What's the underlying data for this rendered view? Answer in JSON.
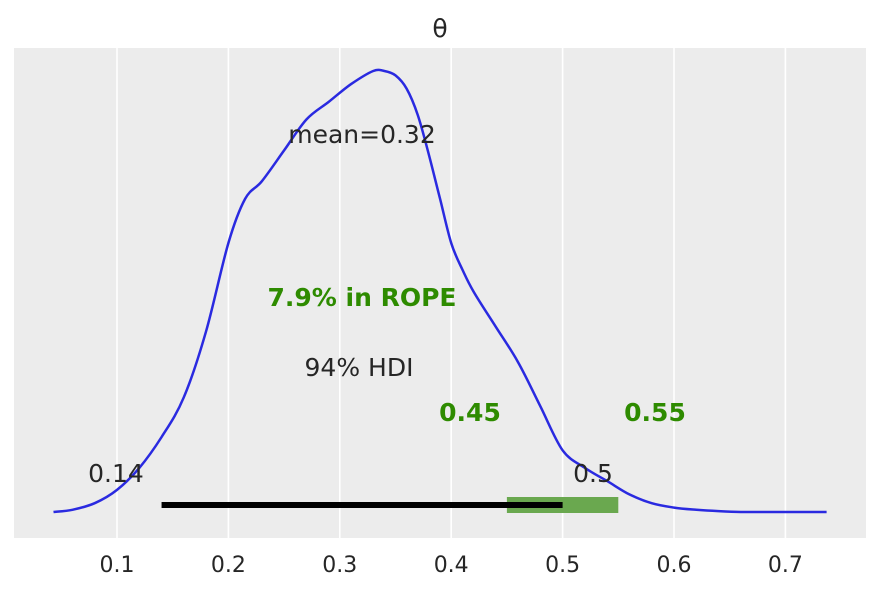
{
  "chart_data": {
    "type": "area",
    "title": "θ",
    "xlabel": "",
    "ylabel": "",
    "xlim": [
      0.01,
      0.77
    ],
    "ylim": [
      0,
      1.09
    ],
    "x_ticks": [
      0.1,
      0.2,
      0.3,
      0.4,
      0.5,
      0.6,
      0.7
    ],
    "x_tick_labels": [
      "0.1",
      "0.2",
      "0.3",
      "0.4",
      "0.5",
      "0.6",
      "0.7"
    ],
    "grid": true,
    "background_color": "#ececec",
    "series": [
      {
        "color": "#2a2ae0",
        "x": [
          0.043,
          0.06,
          0.08,
          0.1,
          0.12,
          0.14,
          0.16,
          0.18,
          0.2,
          0.215,
          0.23,
          0.25,
          0.27,
          0.29,
          0.31,
          0.33,
          0.34,
          0.35,
          0.36,
          0.37,
          0.38,
          0.39,
          0.4,
          0.41,
          0.42,
          0.44,
          0.46,
          0.48,
          0.5,
          0.52,
          0.54,
          0.56,
          0.58,
          0.6,
          0.62,
          0.64,
          0.66,
          0.68,
          0.7,
          0.72,
          0.737
        ],
        "y": [
          0.0,
          0.005,
          0.02,
          0.05,
          0.1,
          0.17,
          0.26,
          0.41,
          0.61,
          0.71,
          0.75,
          0.82,
          0.89,
          0.93,
          0.97,
          1.0,
          1.0,
          0.99,
          0.96,
          0.9,
          0.81,
          0.71,
          0.61,
          0.55,
          0.5,
          0.42,
          0.34,
          0.24,
          0.14,
          0.1,
          0.07,
          0.04,
          0.02,
          0.01,
          0.005,
          0.002,
          0.0,
          0.0,
          0.0,
          0.0,
          0.0
        ]
      }
    ],
    "mean_label": "mean=0.32",
    "rope": {
      "label": "7.9% in ROPE",
      "low": 0.45,
      "high": 0.55,
      "low_label": "0.45",
      "high_label": "0.55",
      "color": "#6aa84f",
      "label_color": "#2e8b00"
    },
    "hdi": {
      "label": "94% HDI",
      "low": 0.14,
      "high": 0.5,
      "low_label": "0.14",
      "high_label": "0.5",
      "color": "#000000"
    }
  }
}
